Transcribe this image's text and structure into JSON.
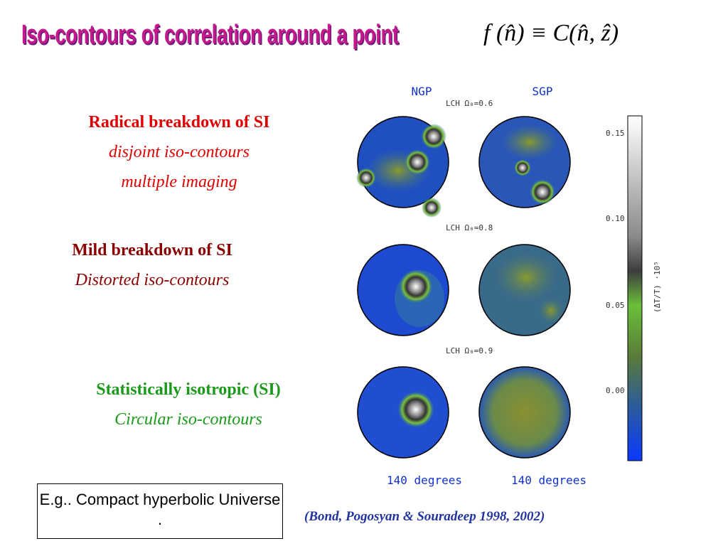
{
  "header": {
    "title": "Iso-contours of correlation around a point",
    "formula": "f (n̂) ≡ C(n̂, ẑ)"
  },
  "sections": [
    {
      "heading": "Radical breakdown  of SI",
      "lines": [
        "disjoint   iso-contours",
        "multiple imaging"
      ]
    },
    {
      "heading": "Mild breakdown of SI",
      "lines": [
        "Distorted iso-contours"
      ]
    },
    {
      "heading": "Statistically isotropic (SI)",
      "lines": [
        "Circular iso-contours"
      ]
    }
  ],
  "figure": {
    "columns": [
      "NGP",
      "SGP"
    ],
    "rows": [
      "LCH  Ω₀=0.6",
      "LCH  Ω₀=0.8",
      "LCH  Ω₀=0.9"
    ],
    "footer": [
      "140 degrees",
      "140 degrees"
    ],
    "colorbar": {
      "label": "(ΔT/T) ·10⁵",
      "ticks": [
        "0.15",
        "0.10",
        "0.05",
        "0.00"
      ]
    }
  },
  "note": "E.g.. Compact hyperbolic Universe .",
  "citation": "(Bond, Pogosyan & Souradeep 1998, 2002)"
}
